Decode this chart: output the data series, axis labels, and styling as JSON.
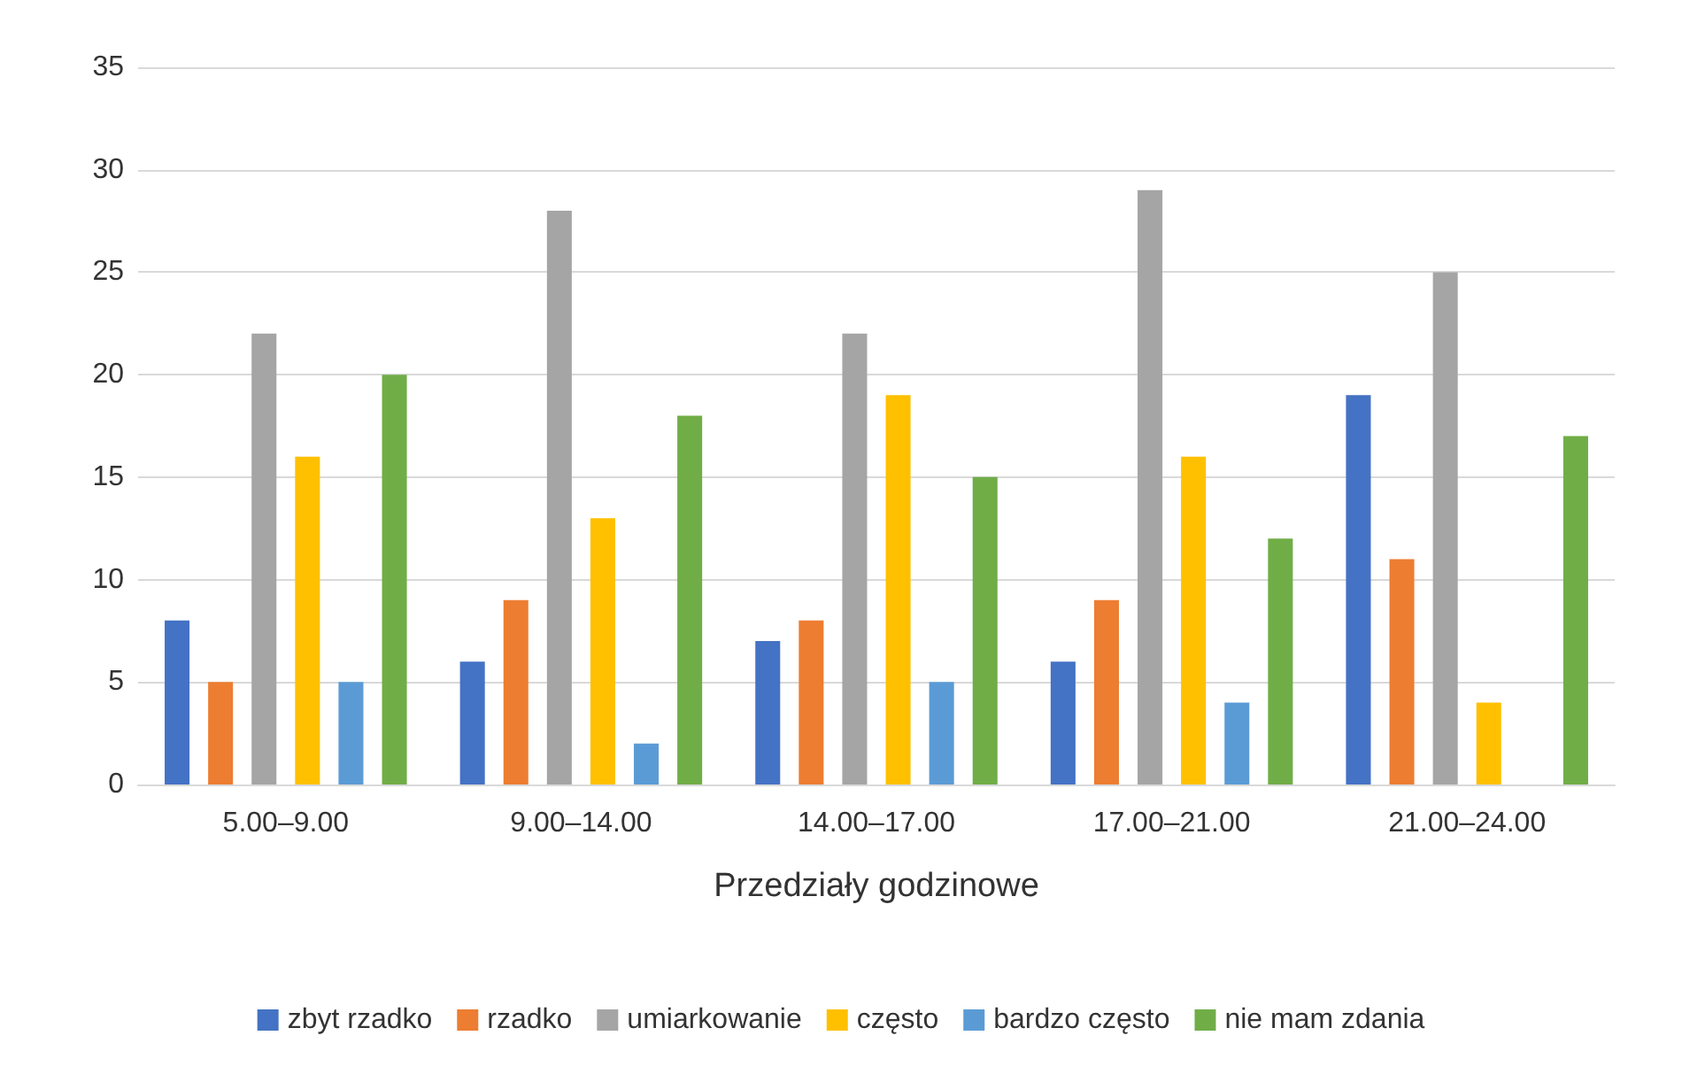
{
  "chart_data": {
    "type": "bar",
    "xlabel": "Przedziały godzinowe",
    "categories": [
      "5.00–9.00",
      "9.00–14.00",
      "14.00–17.00",
      "17.00–21.00",
      "21.00–24.00"
    ],
    "series": [
      {
        "name": "zbyt rzadko",
        "color": "#4472c4",
        "values": [
          8,
          6,
          7,
          6,
          19
        ]
      },
      {
        "name": "rzadko",
        "color": "#ed7d31",
        "values": [
          5,
          9,
          8,
          9,
          11
        ]
      },
      {
        "name": "umiarkowanie",
        "color": "#a5a5a5",
        "values": [
          22,
          28,
          22,
          29,
          25
        ]
      },
      {
        "name": "często",
        "color": "#ffc000",
        "values": [
          16,
          13,
          19,
          16,
          4
        ]
      },
      {
        "name": "bardzo często",
        "color": "#5b9bd5",
        "values": [
          5,
          2,
          5,
          4,
          0
        ]
      },
      {
        "name": "nie mam zdania",
        "color": "#70ad47",
        "values": [
          20,
          18,
          15,
          12,
          17
        ]
      }
    ],
    "ylim": [
      0,
      35
    ],
    "yticks": [
      0,
      5,
      10,
      15,
      20,
      25,
      30,
      35
    ],
    "grid": "y",
    "legend": "bottom"
  }
}
